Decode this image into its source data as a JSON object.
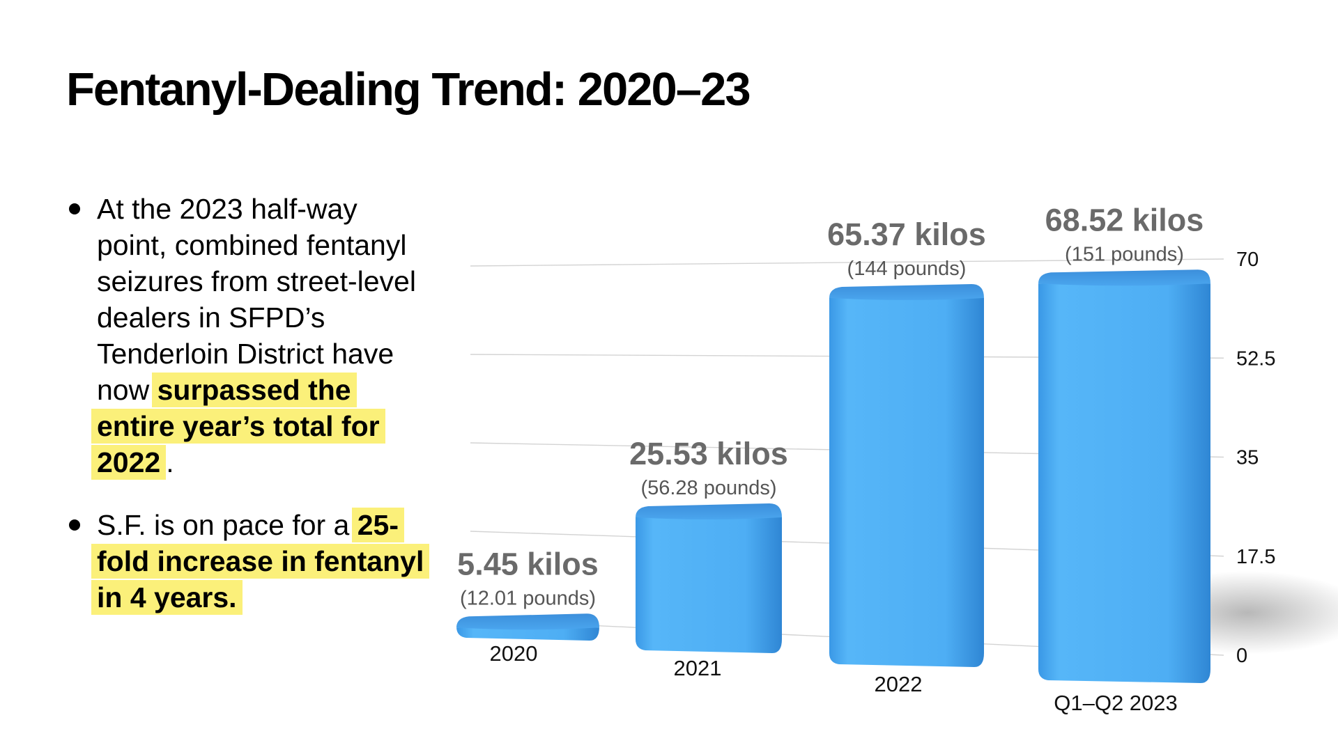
{
  "slide": {
    "title": "Fentanyl-Dealing Trend: 2020–23",
    "bullets": [
      {
        "plain": "At the 2023 half-way point, combined fentanyl seizures from street-level dealers in SFPD’s Tenderloin District have now ",
        "highlight": "surpassed the entire year’s total for 2022",
        "after": "."
      },
      {
        "plain": "S.F. is on pace for a ",
        "highlight": "25-fold increase in fentanyl in 4 years.",
        "after": ""
      }
    ]
  },
  "chart_data": {
    "type": "bar",
    "categories": [
      "2020",
      "2021",
      "2022",
      "Q1–Q2 2023"
    ],
    "series": [
      {
        "values": [
          5.45,
          25.53,
          65.37,
          68.52
        ]
      }
    ],
    "data_labels": [
      "5.45 kilos",
      "25.53 kilos",
      "65.37 kilos",
      "68.52 kilos"
    ],
    "secondary_labels": [
      "(12.01 pounds)",
      "(56.28 pounds)",
      "(144 pounds)",
      "(151 pounds)"
    ],
    "y_ticks": [
      0,
      17.5,
      35,
      52.5,
      70
    ],
    "y_tick_labels": [
      "0",
      "17.5",
      "35",
      "52.5",
      "70"
    ],
    "ylim": [
      0,
      70
    ],
    "y_axis_side": "right",
    "grid": true,
    "legend": "none",
    "style": "3d-perspective",
    "colors": {
      "bar": "#4fb0f5",
      "bar_top": "#3f97e0",
      "bar_shade": "#2f7fce",
      "grid": "#d3d3d3",
      "highlight": "#fbf07a"
    }
  }
}
